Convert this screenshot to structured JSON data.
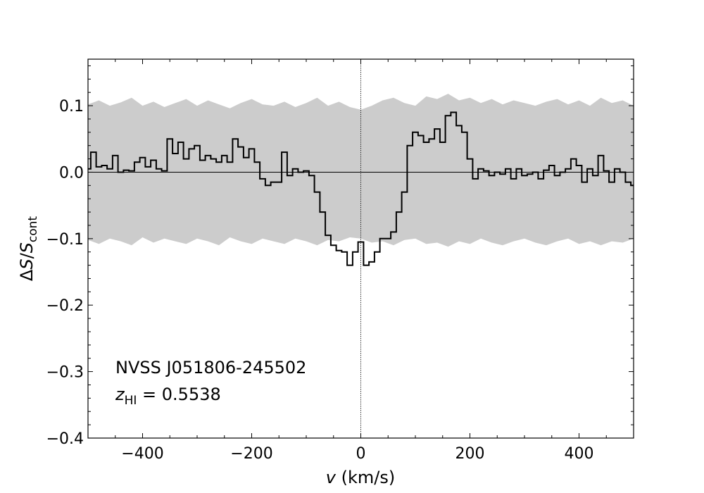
{
  "chart_data": {
    "type": "line",
    "drawstyle": "steps-mid",
    "xlabel": {
      "main": "v",
      "unit": " (km/s)"
    },
    "ylabel": {
      "delta": "Δ",
      "S1": "S",
      "slash": "/",
      "S2": "S",
      "sub": "cont"
    },
    "xlim": [
      -500,
      500
    ],
    "ylim": [
      -0.4,
      0.17
    ],
    "xticks": [
      -400,
      -200,
      0,
      200,
      400
    ],
    "xtick_labels": [
      "−400",
      "−200",
      "0",
      "200",
      "400"
    ],
    "yticks": [
      0.1,
      0.0,
      -0.1,
      -0.2,
      -0.3,
      -0.4
    ],
    "ytick_labels": [
      "0.1",
      "0.0",
      "−0.1",
      "−0.2",
      "−0.3",
      "−0.4"
    ],
    "annotations": {
      "source": "NVSS J051806-245502",
      "redshift_var": "z",
      "redshift_sub": "HI",
      "redshift_value": " = 0.5538"
    },
    "reference_lines": {
      "horizontal_y": 0.0,
      "vertical_x": 0
    },
    "noise_band": {
      "x": [
        -500,
        -480,
        -460,
        -440,
        -420,
        -400,
        -380,
        -360,
        -340,
        -320,
        -300,
        -280,
        -260,
        -240,
        -220,
        -200,
        -180,
        -160,
        -140,
        -120,
        -100,
        -80,
        -60,
        -40,
        -20,
        0,
        20,
        40,
        60,
        80,
        100,
        120,
        140,
        160,
        180,
        200,
        220,
        240,
        260,
        280,
        300,
        320,
        340,
        360,
        380,
        400,
        420,
        440,
        460,
        480,
        500
      ],
      "upper": [
        0.102,
        0.108,
        0.1,
        0.105,
        0.112,
        0.1,
        0.106,
        0.098,
        0.104,
        0.11,
        0.1,
        0.108,
        0.102,
        0.096,
        0.104,
        0.11,
        0.102,
        0.1,
        0.106,
        0.098,
        0.104,
        0.112,
        0.1,
        0.106,
        0.098,
        0.094,
        0.1,
        0.108,
        0.112,
        0.104,
        0.1,
        0.114,
        0.11,
        0.118,
        0.108,
        0.112,
        0.104,
        0.11,
        0.102,
        0.108,
        0.104,
        0.1,
        0.106,
        0.11,
        0.102,
        0.108,
        0.1,
        0.112,
        0.104,
        0.108,
        0.1
      ],
      "lower": [
        -0.102,
        -0.108,
        -0.1,
        -0.104,
        -0.11,
        -0.098,
        -0.106,
        -0.1,
        -0.104,
        -0.108,
        -0.1,
        -0.104,
        -0.11,
        -0.098,
        -0.104,
        -0.108,
        -0.1,
        -0.104,
        -0.108,
        -0.1,
        -0.104,
        -0.11,
        -0.102,
        -0.104,
        -0.098,
        -0.1,
        -0.106,
        -0.104,
        -0.11,
        -0.102,
        -0.1,
        -0.108,
        -0.106,
        -0.112,
        -0.104,
        -0.108,
        -0.1,
        -0.106,
        -0.11,
        -0.104,
        -0.1,
        -0.106,
        -0.11,
        -0.104,
        -0.1,
        -0.108,
        -0.104,
        -0.11,
        -0.104,
        -0.106,
        -0.1
      ]
    },
    "series": [
      {
        "color": "#000000",
        "x": [
          -500,
          -490,
          -480,
          -470,
          -460,
          -450,
          -440,
          -430,
          -420,
          -410,
          -400,
          -390,
          -380,
          -370,
          -360,
          -350,
          -340,
          -330,
          -320,
          -310,
          -300,
          -290,
          -280,
          -270,
          -260,
          -250,
          -240,
          -230,
          -220,
          -210,
          -200,
          -190,
          -180,
          -170,
          -160,
          -150,
          -140,
          -130,
          -120,
          -110,
          -100,
          -90,
          -80,
          -70,
          -60,
          -50,
          -40,
          -30,
          -20,
          -10,
          0,
          10,
          20,
          30,
          40,
          50,
          60,
          70,
          80,
          90,
          100,
          110,
          120,
          130,
          140,
          150,
          160,
          170,
          180,
          190,
          200,
          210,
          220,
          230,
          240,
          250,
          260,
          270,
          280,
          290,
          300,
          310,
          320,
          330,
          340,
          350,
          360,
          370,
          380,
          390,
          400,
          410,
          420,
          430,
          440,
          450,
          460,
          470,
          480,
          490,
          500
        ],
        "y": [
          0.005,
          0.03,
          0.008,
          0.01,
          0.005,
          0.025,
          0.0,
          0.003,
          0.002,
          0.015,
          0.022,
          0.008,
          0.018,
          0.005,
          0.002,
          0.05,
          0.028,
          0.045,
          0.02,
          0.035,
          0.04,
          0.018,
          0.025,
          0.02,
          0.015,
          0.025,
          0.015,
          0.05,
          0.038,
          0.022,
          0.035,
          0.015,
          -0.01,
          -0.02,
          -0.015,
          -0.015,
          0.03,
          -0.005,
          0.005,
          0.0,
          0.002,
          -0.005,
          -0.03,
          -0.06,
          -0.095,
          -0.11,
          -0.118,
          -0.12,
          -0.14,
          -0.12,
          -0.105,
          -0.14,
          -0.135,
          -0.12,
          -0.1,
          -0.1,
          -0.09,
          -0.06,
          -0.03,
          0.04,
          0.06,
          0.055,
          0.045,
          0.05,
          0.065,
          0.045,
          0.085,
          0.09,
          0.07,
          0.06,
          0.02,
          -0.01,
          0.005,
          0.002,
          -0.005,
          0.0,
          -0.003,
          0.005,
          -0.01,
          0.005,
          -0.005,
          -0.003,
          0.0,
          -0.01,
          0.003,
          0.01,
          -0.005,
          0.0,
          0.005,
          0.02,
          0.01,
          -0.015,
          0.005,
          -0.005,
          0.025,
          0.002,
          -0.015,
          0.005,
          0.0,
          -0.015,
          -0.02
        ]
      }
    ],
    "grid": false
  }
}
